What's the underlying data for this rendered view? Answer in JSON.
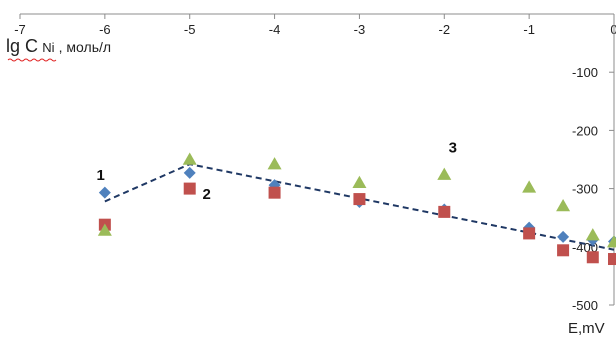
{
  "chart_data": {
    "type": "scatter",
    "x_axis": {
      "label": "E,mV",
      "range": [
        -7,
        0
      ],
      "ticks": [
        -7,
        -6,
        -5,
        -4,
        -3,
        -2,
        -1,
        0
      ],
      "tick_labels": [
        "-7",
        "-6",
        "-5",
        "-4",
        "-3",
        "-2",
        "-1",
        "0"
      ],
      "position": "top"
    },
    "y_axis": {
      "label_main": "lg C",
      "label_sub": "Ni",
      "label_suffix": " , моль/л",
      "range": [
        -500,
        0
      ],
      "ticks": [
        0,
        -100,
        -200,
        -300,
        -400,
        -500
      ],
      "tick_labels": [
        "0",
        "-100",
        "-200",
        "-300",
        "-400",
        "-500"
      ],
      "position": "right"
    },
    "grid": false,
    "legend": "none",
    "series": [
      {
        "label": "1",
        "color": "#4f81bd",
        "marker": "diamond",
        "points": [
          [
            -6.0,
            -307
          ],
          [
            -5.0,
            -273
          ],
          [
            -4.0,
            -294
          ],
          [
            -3.0,
            -323
          ],
          [
            -2.0,
            -336
          ],
          [
            -1.0,
            -367
          ],
          [
            -0.6,
            -383
          ],
          [
            -0.25,
            -388
          ],
          [
            0.0,
            -391
          ]
        ]
      },
      {
        "label": "2",
        "color": "#c0504d",
        "marker": "square",
        "points": [
          [
            -6.0,
            -362
          ],
          [
            -5.0,
            -300
          ],
          [
            -4.0,
            -307
          ],
          [
            -3.0,
            -318
          ],
          [
            -2.0,
            -340
          ],
          [
            -1.0,
            -377
          ],
          [
            -0.6,
            -406
          ],
          [
            -0.25,
            -418
          ],
          [
            0.0,
            -421
          ]
        ]
      },
      {
        "label": "3",
        "color": "#9bbb59",
        "marker": "triangle",
        "points": [
          [
            -6.0,
            -372
          ],
          [
            -5.0,
            -250
          ],
          [
            -4.0,
            -258
          ],
          [
            -3.0,
            -290
          ],
          [
            -2.0,
            -276
          ],
          [
            -1.0,
            -298
          ],
          [
            -0.6,
            -330
          ],
          [
            -0.25,
            -380
          ],
          [
            0.0,
            -392
          ]
        ]
      }
    ],
    "trendline": {
      "color": "#1f3864",
      "style": "dashed",
      "points": [
        [
          -6.0,
          -322
        ],
        [
          -5.0,
          -258
        ],
        [
          0.0,
          -405
        ]
      ]
    },
    "annotations": [
      {
        "text": "1",
        "x": -6.05,
        "y": -285
      },
      {
        "text": "2",
        "x": -4.8,
        "y": -318
      },
      {
        "text": "3",
        "x": -1.9,
        "y": -238
      }
    ]
  }
}
